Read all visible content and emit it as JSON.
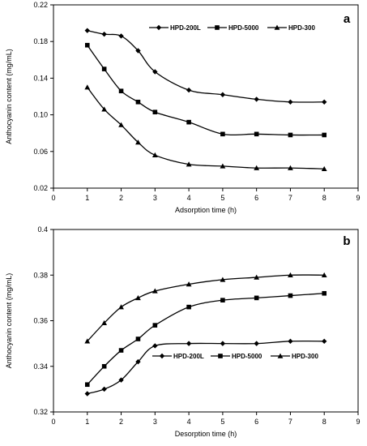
{
  "chart_data": [
    {
      "type": "line",
      "panel_label": "a",
      "xlabel": "Adsorption time (h)",
      "ylabel": "Anthocyanin content (mg/mL)",
      "xlim": [
        0,
        9
      ],
      "ylim": [
        0.02,
        0.22
      ],
      "xticks": [
        "0",
        "1",
        "2",
        "3",
        "4",
        "5",
        "6",
        "7",
        "8",
        "9"
      ],
      "yticks": [
        "0.02",
        "0.06",
        "0.10",
        "0.14",
        "0.18",
        "0.22"
      ],
      "legend_position": "top-right",
      "series": [
        {
          "name": "HPD-200L",
          "marker": "diamond",
          "x": [
            1,
            1.5,
            2,
            2.5,
            3,
            4,
            5,
            6,
            7,
            8
          ],
          "y": [
            0.192,
            0.188,
            0.186,
            0.17,
            0.147,
            0.127,
            0.122,
            0.117,
            0.114,
            0.114
          ]
        },
        {
          "name": "HPD-5000",
          "marker": "square",
          "x": [
            1,
            1.5,
            2,
            2.5,
            3,
            4,
            5,
            6,
            7,
            8
          ],
          "y": [
            0.176,
            0.15,
            0.126,
            0.114,
            0.103,
            0.092,
            0.079,
            0.079,
            0.078,
            0.078
          ]
        },
        {
          "name": "HPD-300",
          "marker": "triangle",
          "x": [
            1,
            1.5,
            2,
            2.5,
            3,
            4,
            5,
            6,
            7,
            8
          ],
          "y": [
            0.13,
            0.106,
            0.089,
            0.07,
            0.056,
            0.046,
            0.044,
            0.042,
            0.042,
            0.041
          ]
        }
      ]
    },
    {
      "type": "line",
      "panel_label": "b",
      "xlabel": "Desorption time (h)",
      "ylabel": "Anthocyanin content (mg/mL)",
      "xlim": [
        0,
        9
      ],
      "ylim": [
        0.32,
        0.4
      ],
      "xticks": [
        "0",
        "1",
        "2",
        "3",
        "4",
        "5",
        "6",
        "7",
        "8",
        "9"
      ],
      "yticks": [
        "0.32",
        "0.34",
        "0.36",
        "0.38",
        "0.4"
      ],
      "legend_position": "bottom-right",
      "series": [
        {
          "name": "HPD-200L",
          "marker": "diamond",
          "x": [
            1,
            1.5,
            2,
            2.5,
            3,
            4,
            5,
            6,
            7,
            8
          ],
          "y": [
            0.328,
            0.33,
            0.334,
            0.342,
            0.349,
            0.35,
            0.35,
            0.35,
            0.351,
            0.351
          ]
        },
        {
          "name": "HPD-5000",
          "marker": "square",
          "x": [
            1,
            1.5,
            2,
            2.5,
            3,
            4,
            5,
            6,
            7,
            8
          ],
          "y": [
            0.332,
            0.34,
            0.347,
            0.352,
            0.358,
            0.366,
            0.369,
            0.37,
            0.371,
            0.372
          ]
        },
        {
          "name": "HPD-300",
          "marker": "triangle",
          "x": [
            1,
            1.5,
            2,
            2.5,
            3,
            4,
            5,
            6,
            7,
            8
          ],
          "y": [
            0.351,
            0.359,
            0.366,
            0.37,
            0.373,
            0.376,
            0.378,
            0.379,
            0.38,
            0.38
          ]
        }
      ]
    }
  ]
}
